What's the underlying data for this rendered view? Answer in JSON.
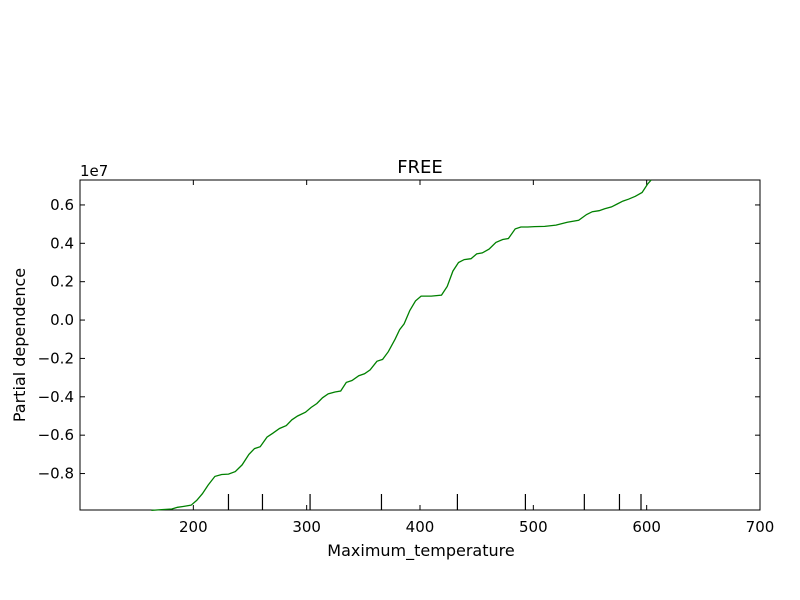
{
  "chart_data": {
    "type": "line",
    "title": "FREE",
    "xlabel": "Maximum_temperature",
    "ylabel": "Partial dependence",
    "y_scale_label": "1e7",
    "xlim": [
      100,
      700
    ],
    "ylim": [
      -0.99,
      0.73
    ],
    "x_ticks": [
      200,
      300,
      400,
      500,
      600,
      700
    ],
    "x_tick_labels": [
      "200",
      "300",
      "400",
      "500",
      "600",
      "700"
    ],
    "y_ticks": [
      -0.8,
      -0.6,
      -0.4,
      -0.2,
      0.0,
      0.2,
      0.4,
      0.6
    ],
    "y_tick_labels": [
      "−0.8",
      "−0.6",
      "−0.4",
      "−0.2",
      "0.0",
      "0.2",
      "0.4",
      "0.6"
    ],
    "grid": false,
    "line_color": "#008000",
    "deciles": [
      231,
      261,
      303,
      366,
      433,
      493,
      545,
      576,
      595
    ],
    "series": [
      {
        "x": [
          163,
          172,
          181,
          186,
          191,
          198,
          203,
          208,
          213,
          219,
          225,
          231,
          237,
          243,
          249,
          254,
          259,
          265,
          270,
          276,
          282,
          287,
          292,
          299,
          304,
          309,
          314,
          319,
          325,
          330,
          335,
          340,
          346,
          351,
          356,
          362,
          367,
          372,
          378,
          382,
          386,
          391,
          396,
          401,
          410,
          419,
          424,
          429,
          434,
          439,
          445,
          450,
          455,
          461,
          467,
          473,
          478,
          484,
          489,
          495,
          501,
          510,
          520,
          530,
          540,
          547,
          552,
          558,
          563,
          569,
          574,
          579,
          584,
          590,
          596,
          601,
          604
        ],
        "y": [
          -0.992,
          -0.988,
          -0.985,
          -0.976,
          -0.972,
          -0.965,
          -0.94,
          -0.905,
          -0.86,
          -0.815,
          -0.805,
          -0.803,
          -0.79,
          -0.755,
          -0.7,
          -0.67,
          -0.66,
          -0.61,
          -0.59,
          -0.565,
          -0.55,
          -0.52,
          -0.5,
          -0.48,
          -0.455,
          -0.435,
          -0.405,
          -0.385,
          -0.375,
          -0.37,
          -0.325,
          -0.315,
          -0.29,
          -0.28,
          -0.26,
          -0.215,
          -0.205,
          -0.165,
          -0.1,
          -0.05,
          -0.02,
          0.05,
          0.1,
          0.125,
          0.125,
          0.13,
          0.175,
          0.255,
          0.3,
          0.315,
          0.32,
          0.345,
          0.35,
          0.37,
          0.405,
          0.42,
          0.425,
          0.475,
          0.485,
          0.485,
          0.487,
          0.488,
          0.495,
          0.51,
          0.52,
          0.55,
          0.565,
          0.57,
          0.58,
          0.59,
          0.605,
          0.62,
          0.63,
          0.645,
          0.665,
          0.71,
          0.73
        ]
      }
    ]
  }
}
